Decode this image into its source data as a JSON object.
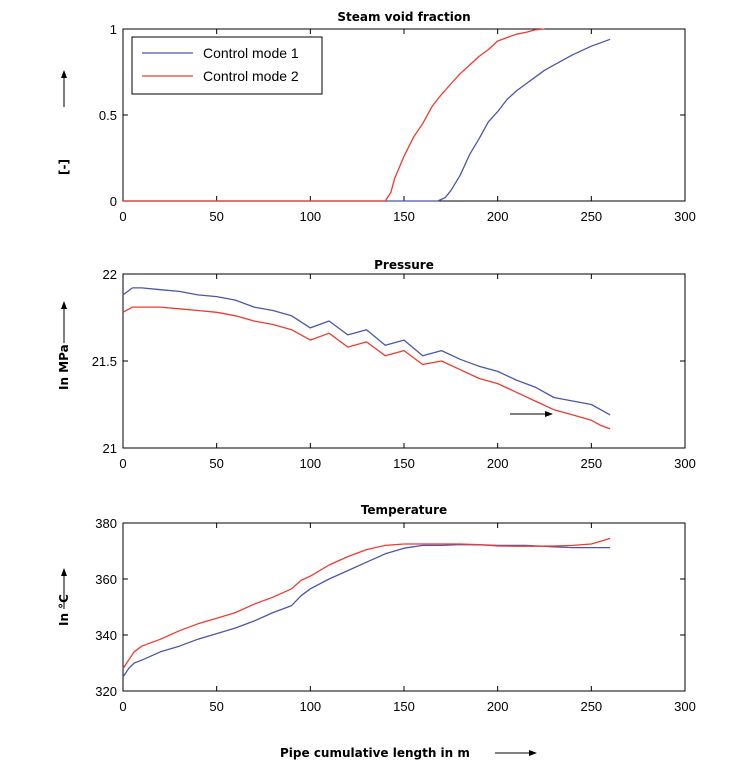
{
  "colors": {
    "mode1": "#4a57a8",
    "mode2": "#ee3b2e",
    "axis": "#000000"
  },
  "legend": {
    "entries": [
      "Control mode 1",
      "Control mode 2"
    ],
    "placement": "top-left"
  },
  "xlabel": "Pipe cumulative length in m",
  "chart_data": [
    {
      "type": "line",
      "title": "Steam void fraction",
      "ylabel": "[-]",
      "xlim": [
        0,
        300
      ],
      "ylim": [
        0,
        1
      ],
      "xticks": [
        "0",
        "50",
        "100",
        "150",
        "200",
        "250",
        "300"
      ],
      "yticks": [
        "0",
        "0.5",
        "1"
      ],
      "grid": false,
      "legend": "top-left",
      "series": [
        {
          "name": "Control mode 1",
          "x": [
            0,
            168,
            172,
            175,
            180,
            185,
            190,
            195,
            200,
            205,
            210,
            215,
            220,
            225,
            230,
            240,
            250,
            260
          ],
          "y": [
            0,
            0,
            0.02,
            0.06,
            0.15,
            0.27,
            0.36,
            0.46,
            0.52,
            0.59,
            0.64,
            0.68,
            0.72,
            0.76,
            0.79,
            0.85,
            0.9,
            0.94
          ]
        },
        {
          "name": "Control mode 2",
          "x": [
            0,
            140,
            143,
            145,
            150,
            155,
            160,
            165,
            170,
            175,
            180,
            185,
            190,
            195,
            200,
            205,
            210,
            215,
            220,
            225
          ],
          "y": [
            0,
            0,
            0.05,
            0.13,
            0.26,
            0.37,
            0.45,
            0.55,
            0.62,
            0.68,
            0.74,
            0.79,
            0.84,
            0.88,
            0.93,
            0.95,
            0.97,
            0.98,
            0.995,
            1.0
          ]
        }
      ]
    },
    {
      "type": "line",
      "title": "Pressure",
      "ylabel": "In MPa",
      "xlim": [
        0,
        300
      ],
      "ylim": [
        21,
        22
      ],
      "xticks": [
        "0",
        "50",
        "100",
        "150",
        "200",
        "250",
        "300"
      ],
      "yticks": [
        "21",
        "21.5",
        "22"
      ],
      "grid": false,
      "series": [
        {
          "name": "Control mode 1",
          "x": [
            0,
            5,
            10,
            20,
            30,
            40,
            50,
            60,
            70,
            80,
            90,
            100,
            110,
            120,
            130,
            140,
            150,
            160,
            170,
            180,
            190,
            200,
            210,
            220,
            230,
            240,
            250,
            255,
            260
          ],
          "y": [
            21.88,
            21.92,
            21.92,
            21.91,
            21.9,
            21.88,
            21.87,
            21.85,
            21.81,
            21.79,
            21.76,
            21.69,
            21.73,
            21.65,
            21.68,
            21.59,
            21.62,
            21.53,
            21.56,
            21.51,
            21.47,
            21.44,
            21.39,
            21.35,
            21.29,
            21.27,
            21.25,
            21.22,
            21.19
          ]
        },
        {
          "name": "Control mode 2",
          "x": [
            0,
            5,
            10,
            20,
            30,
            40,
            50,
            60,
            70,
            80,
            90,
            100,
            110,
            120,
            130,
            140,
            150,
            160,
            170,
            180,
            190,
            200,
            210,
            220,
            230,
            240,
            250,
            255,
            260
          ],
          "y": [
            21.78,
            21.81,
            21.81,
            21.81,
            21.8,
            21.79,
            21.78,
            21.76,
            21.73,
            21.71,
            21.68,
            21.62,
            21.66,
            21.58,
            21.61,
            21.53,
            21.56,
            21.48,
            21.5,
            21.45,
            21.4,
            21.37,
            21.32,
            21.27,
            21.22,
            21.19,
            21.16,
            21.13,
            21.11
          ]
        }
      ]
    },
    {
      "type": "line",
      "title": "Temperature",
      "ylabel": "In °C",
      "xlim": [
        0,
        300
      ],
      "ylim": [
        320,
        380
      ],
      "xticks": [
        "0",
        "50",
        "100",
        "150",
        "200",
        "250",
        "300"
      ],
      "yticks": [
        "320",
        "340",
        "360",
        "380"
      ],
      "grid": false,
      "series": [
        {
          "name": "Control mode 1",
          "x": [
            0,
            3,
            6,
            10,
            20,
            30,
            40,
            50,
            60,
            70,
            80,
            90,
            95,
            100,
            110,
            120,
            130,
            140,
            150,
            160,
            170,
            180,
            190,
            200,
            210,
            215,
            230,
            240,
            250,
            260
          ],
          "y": [
            325,
            328,
            330,
            331,
            334,
            336,
            338.5,
            340.5,
            342.5,
            345,
            348,
            350.5,
            354,
            356.5,
            360,
            363,
            366,
            369,
            371,
            372,
            372,
            372.3,
            372.2,
            372,
            372,
            372,
            371.5,
            371.2,
            371.2,
            371.2
          ]
        },
        {
          "name": "Control mode 2",
          "x": [
            0,
            3,
            6,
            10,
            20,
            30,
            40,
            50,
            60,
            70,
            80,
            90,
            95,
            100,
            110,
            120,
            130,
            140,
            150,
            160,
            170,
            180,
            190,
            200,
            210,
            220,
            230,
            240,
            250,
            255,
            260
          ],
          "y": [
            328,
            331,
            334,
            336,
            338.5,
            341.5,
            344,
            346,
            348,
            351,
            353.5,
            356.5,
            359.5,
            361,
            365,
            368,
            370.5,
            372,
            372.5,
            372.5,
            372.5,
            372.5,
            372.3,
            371.8,
            371.7,
            371.7,
            371.8,
            372,
            372.5,
            373.5,
            374.5
          ]
        }
      ]
    }
  ]
}
